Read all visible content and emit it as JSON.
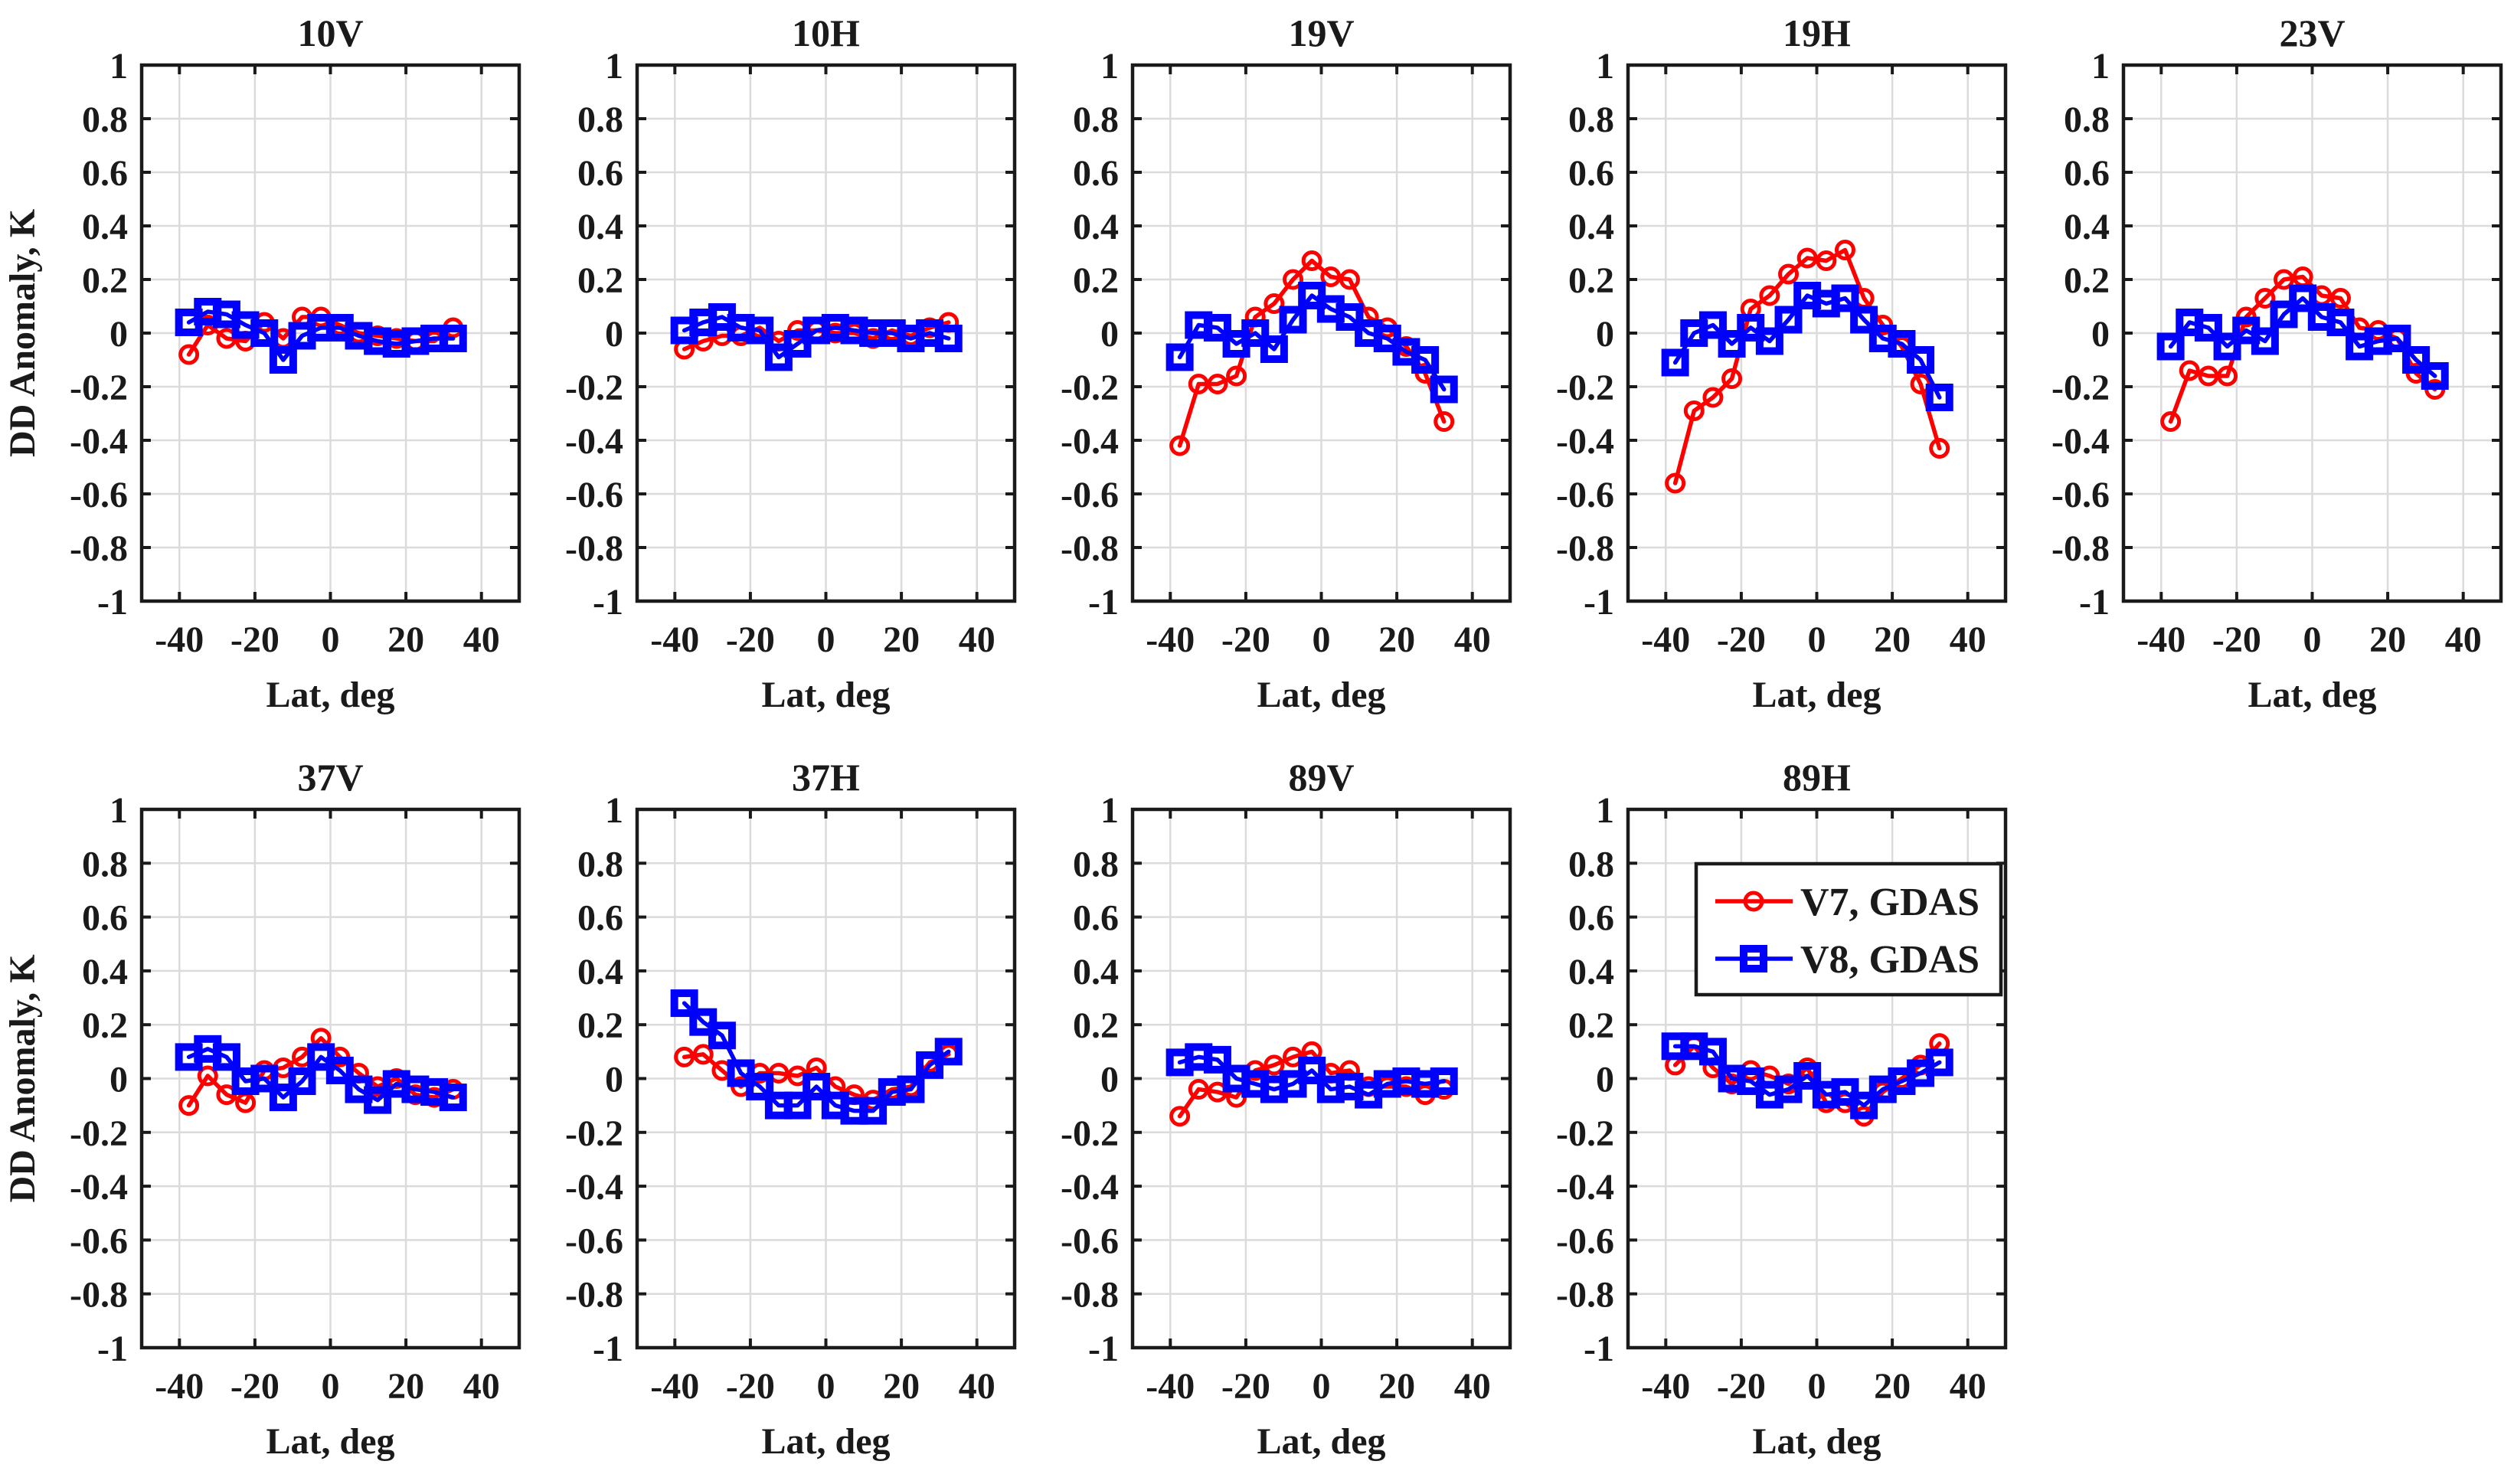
{
  "figure": {
    "background": "#FFFFFF",
    "xlabel": "Lat, deg",
    "ylabel": "DD Anomaly, K",
    "colors": {
      "v7": "#FF0000",
      "v8": "#0000FF",
      "grid": "#DBDBDB",
      "axis": "#1A1A1A"
    },
    "legend": {
      "host": "89H",
      "position": "northeast",
      "entries": [
        {
          "label": "V7, GDAS",
          "color": "#FF0000",
          "marker": "circle"
        },
        {
          "label": "V8, GDAS",
          "color": "#0000FF",
          "marker": "square"
        }
      ]
    }
  },
  "chart_data": [
    {
      "type": "line",
      "title": "10V",
      "row": 0,
      "col": 0,
      "xlabel": "Lat, deg",
      "ylabel": "DD Anomaly, K",
      "xlim": [
        -50,
        50
      ],
      "ylim": [
        -1,
        1
      ],
      "xticks": [
        -40,
        -20,
        0,
        20,
        40
      ],
      "yticks": [
        1,
        0.8,
        0.6,
        0.4,
        0.2,
        0,
        -0.2,
        -0.4,
        -0.6,
        -0.8,
        -1
      ],
      "grid": true,
      "x": [
        -37.5,
        -32.5,
        -27.5,
        -22.5,
        -17.5,
        -12.5,
        -7.5,
        -2.5,
        2.5,
        7.5,
        12.5,
        17.5,
        22.5,
        27.5,
        32.5
      ],
      "series": [
        {
          "name": "V7, GDAS",
          "color": "#FF0000",
          "marker": "circle",
          "values": [
            -0.08,
            0.03,
            -0.02,
            -0.03,
            0.04,
            -0.02,
            0.06,
            0.06,
            0.03,
            0.0,
            -0.01,
            -0.02,
            -0.03,
            -0.03,
            0.02
          ]
        },
        {
          "name": "V8, GDAS",
          "color": "#0000FF",
          "marker": "square",
          "values": [
            0.04,
            0.08,
            0.07,
            0.03,
            0.0,
            -0.1,
            -0.01,
            0.02,
            0.02,
            -0.01,
            -0.03,
            -0.04,
            -0.03,
            -0.02,
            -0.02
          ]
        }
      ]
    },
    {
      "type": "line",
      "title": "10H",
      "row": 0,
      "col": 1,
      "xlabel": "Lat, deg",
      "ylabel": "",
      "xlim": [
        -50,
        50
      ],
      "ylim": [
        -1,
        1
      ],
      "xticks": [
        -40,
        -20,
        0,
        20,
        40
      ],
      "yticks": [
        1,
        0.8,
        0.6,
        0.4,
        0.2,
        0,
        -0.2,
        -0.4,
        -0.6,
        -0.8,
        -1
      ],
      "grid": true,
      "x": [
        -37.5,
        -32.5,
        -27.5,
        -22.5,
        -17.5,
        -12.5,
        -7.5,
        -2.5,
        2.5,
        7.5,
        12.5,
        17.5,
        22.5,
        27.5,
        32.5
      ],
      "series": [
        {
          "name": "V7, GDAS",
          "color": "#FF0000",
          "marker": "circle",
          "values": [
            -0.06,
            -0.03,
            -0.01,
            -0.01,
            0.02,
            -0.03,
            0.01,
            0.01,
            0.0,
            0.0,
            -0.02,
            0.01,
            -0.01,
            0.02,
            0.04
          ]
        },
        {
          "name": "V8, GDAS",
          "color": "#0000FF",
          "marker": "square",
          "values": [
            0.01,
            0.04,
            0.06,
            0.02,
            0.01,
            -0.09,
            -0.04,
            0.01,
            0.02,
            0.01,
            0.0,
            0.0,
            -0.02,
            0.0,
            -0.02
          ]
        }
      ]
    },
    {
      "type": "line",
      "title": "19V",
      "row": 0,
      "col": 2,
      "xlabel": "Lat, deg",
      "ylabel": "",
      "xlim": [
        -50,
        50
      ],
      "ylim": [
        -1,
        1
      ],
      "xticks": [
        -40,
        -20,
        0,
        20,
        40
      ],
      "yticks": [
        1,
        0.8,
        0.6,
        0.4,
        0.2,
        0,
        -0.2,
        -0.4,
        -0.6,
        -0.8,
        -1
      ],
      "grid": true,
      "x": [
        -37.5,
        -32.5,
        -27.5,
        -22.5,
        -17.5,
        -12.5,
        -7.5,
        -2.5,
        2.5,
        7.5,
        12.5,
        17.5,
        22.5,
        27.5,
        32.5
      ],
      "series": [
        {
          "name": "V7, GDAS",
          "color": "#FF0000",
          "marker": "circle",
          "values": [
            -0.42,
            -0.19,
            -0.19,
            -0.16,
            0.06,
            0.11,
            0.2,
            0.27,
            0.21,
            0.2,
            0.06,
            0.02,
            -0.05,
            -0.15,
            -0.33
          ]
        },
        {
          "name": "V8, GDAS",
          "color": "#0000FF",
          "marker": "square",
          "values": [
            -0.09,
            0.03,
            0.02,
            -0.04,
            0.0,
            -0.06,
            0.05,
            0.14,
            0.09,
            0.06,
            0.0,
            -0.02,
            -0.07,
            -0.1,
            -0.21
          ]
        }
      ]
    },
    {
      "type": "line",
      "title": "19H",
      "row": 0,
      "col": 3,
      "xlabel": "Lat, deg",
      "ylabel": "",
      "xlim": [
        -50,
        50
      ],
      "ylim": [
        -1,
        1
      ],
      "xticks": [
        -40,
        -20,
        0,
        20,
        40
      ],
      "yticks": [
        1,
        0.8,
        0.6,
        0.4,
        0.2,
        0,
        -0.2,
        -0.4,
        -0.6,
        -0.8,
        -1
      ],
      "grid": true,
      "x": [
        -37.5,
        -32.5,
        -27.5,
        -22.5,
        -17.5,
        -12.5,
        -7.5,
        -2.5,
        2.5,
        7.5,
        12.5,
        17.5,
        22.5,
        27.5,
        32.5
      ],
      "series": [
        {
          "name": "V7, GDAS",
          "color": "#FF0000",
          "marker": "circle",
          "values": [
            -0.56,
            -0.29,
            -0.24,
            -0.17,
            0.09,
            0.14,
            0.22,
            0.28,
            0.27,
            0.31,
            0.13,
            0.03,
            -0.05,
            -0.19,
            -0.43
          ]
        },
        {
          "name": "V8, GDAS",
          "color": "#0000FF",
          "marker": "square",
          "values": [
            -0.11,
            0.0,
            0.03,
            -0.04,
            0.02,
            -0.03,
            0.05,
            0.14,
            0.11,
            0.13,
            0.05,
            -0.02,
            -0.04,
            -0.1,
            -0.24
          ]
        }
      ]
    },
    {
      "type": "line",
      "title": "23V",
      "row": 0,
      "col": 4,
      "xlabel": "Lat, deg",
      "ylabel": "",
      "xlim": [
        -50,
        50
      ],
      "ylim": [
        -1,
        1
      ],
      "xticks": [
        -40,
        -20,
        0,
        20,
        40
      ],
      "yticks": [
        1,
        0.8,
        0.6,
        0.4,
        0.2,
        0,
        -0.2,
        -0.4,
        -0.6,
        -0.8,
        -1
      ],
      "grid": true,
      "x": [
        -37.5,
        -32.5,
        -27.5,
        -22.5,
        -17.5,
        -12.5,
        -7.5,
        -2.5,
        2.5,
        7.5,
        12.5,
        17.5,
        22.5,
        27.5,
        32.5
      ],
      "series": [
        {
          "name": "V7, GDAS",
          "color": "#FF0000",
          "marker": "circle",
          "values": [
            -0.33,
            -0.14,
            -0.16,
            -0.16,
            0.06,
            0.13,
            0.2,
            0.21,
            0.14,
            0.13,
            0.02,
            0.01,
            -0.02,
            -0.15,
            -0.21
          ]
        },
        {
          "name": "V8, GDAS",
          "color": "#0000FF",
          "marker": "square",
          "values": [
            -0.05,
            0.04,
            0.02,
            -0.05,
            0.01,
            -0.03,
            0.07,
            0.13,
            0.06,
            0.04,
            -0.05,
            -0.03,
            -0.02,
            -0.1,
            -0.16
          ]
        }
      ]
    },
    {
      "type": "line",
      "title": "37V",
      "row": 1,
      "col": 0,
      "xlabel": "Lat, deg",
      "ylabel": "DD Anomaly, K",
      "xlim": [
        -50,
        50
      ],
      "ylim": [
        -1,
        1
      ],
      "xticks": [
        -40,
        -20,
        0,
        20,
        40
      ],
      "yticks": [
        1,
        0.8,
        0.6,
        0.4,
        0.2,
        0,
        -0.2,
        -0.4,
        -0.6,
        -0.8,
        -1
      ],
      "grid": true,
      "x": [
        -37.5,
        -32.5,
        -27.5,
        -22.5,
        -17.5,
        -12.5,
        -7.5,
        -2.5,
        2.5,
        7.5,
        12.5,
        17.5,
        22.5,
        27.5,
        32.5
      ],
      "series": [
        {
          "name": "V7, GDAS",
          "color": "#FF0000",
          "marker": "circle",
          "values": [
            -0.1,
            0.01,
            -0.06,
            -0.09,
            0.03,
            0.04,
            0.08,
            0.15,
            0.08,
            0.02,
            -0.03,
            0.0,
            -0.06,
            -0.07,
            -0.04
          ]
        },
        {
          "name": "V8, GDAS",
          "color": "#0000FF",
          "marker": "square",
          "values": [
            0.08,
            0.11,
            0.08,
            -0.01,
            0.0,
            -0.07,
            -0.01,
            0.08,
            0.03,
            -0.04,
            -0.08,
            -0.02,
            -0.04,
            -0.05,
            -0.07
          ]
        }
      ]
    },
    {
      "type": "line",
      "title": "37H",
      "row": 1,
      "col": 1,
      "xlabel": "Lat, deg",
      "ylabel": "",
      "xlim": [
        -50,
        50
      ],
      "ylim": [
        -1,
        1
      ],
      "xticks": [
        -40,
        -20,
        0,
        20,
        40
      ],
      "yticks": [
        1,
        0.8,
        0.6,
        0.4,
        0.2,
        0,
        -0.2,
        -0.4,
        -0.6,
        -0.8,
        -1
      ],
      "grid": true,
      "x": [
        -37.5,
        -32.5,
        -27.5,
        -22.5,
        -17.5,
        -12.5,
        -7.5,
        -2.5,
        2.5,
        7.5,
        12.5,
        17.5,
        22.5,
        27.5,
        32.5
      ],
      "series": [
        {
          "name": "V7, GDAS",
          "color": "#FF0000",
          "marker": "circle",
          "values": [
            0.08,
            0.09,
            0.03,
            -0.03,
            0.02,
            0.02,
            0.01,
            0.04,
            -0.03,
            -0.06,
            -0.08,
            -0.04,
            -0.03,
            0.06,
            0.09
          ]
        },
        {
          "name": "V8, GDAS",
          "color": "#0000FF",
          "marker": "square",
          "values": [
            0.28,
            0.21,
            0.16,
            0.02,
            -0.03,
            -0.1,
            -0.1,
            -0.03,
            -0.1,
            -0.12,
            -0.12,
            -0.05,
            -0.04,
            0.05,
            0.1
          ]
        }
      ]
    },
    {
      "type": "line",
      "title": "89V",
      "row": 1,
      "col": 2,
      "xlabel": "Lat, deg",
      "ylabel": "",
      "xlim": [
        -50,
        50
      ],
      "ylim": [
        -1,
        1
      ],
      "xticks": [
        -40,
        -20,
        0,
        20,
        40
      ],
      "yticks": [
        1,
        0.8,
        0.6,
        0.4,
        0.2,
        0,
        -0.2,
        -0.4,
        -0.6,
        -0.8,
        -1
      ],
      "grid": true,
      "x": [
        -37.5,
        -32.5,
        -27.5,
        -22.5,
        -17.5,
        -12.5,
        -7.5,
        -2.5,
        2.5,
        7.5,
        12.5,
        17.5,
        22.5,
        27.5,
        32.5
      ],
      "series": [
        {
          "name": "V7, GDAS",
          "color": "#FF0000",
          "marker": "circle",
          "values": [
            -0.14,
            -0.04,
            -0.05,
            -0.07,
            0.03,
            0.05,
            0.08,
            0.1,
            0.02,
            0.03,
            -0.03,
            -0.03,
            -0.03,
            -0.06,
            -0.04
          ]
        },
        {
          "name": "V8, GDAS",
          "color": "#0000FF",
          "marker": "square",
          "values": [
            0.06,
            0.08,
            0.07,
            0.0,
            -0.02,
            -0.04,
            -0.02,
            0.03,
            -0.04,
            -0.03,
            -0.06,
            -0.02,
            -0.01,
            -0.02,
            -0.01
          ]
        }
      ]
    },
    {
      "type": "line",
      "title": "89H",
      "row": 1,
      "col": 3,
      "xlabel": "Lat, deg",
      "ylabel": "",
      "xlim": [
        -50,
        50
      ],
      "ylim": [
        -1,
        1
      ],
      "xticks": [
        -40,
        -20,
        0,
        20,
        40
      ],
      "yticks": [
        1,
        0.8,
        0.6,
        0.4,
        0.2,
        0,
        -0.2,
        -0.4,
        -0.6,
        -0.8,
        -1
      ],
      "grid": true,
      "x": [
        -37.5,
        -32.5,
        -27.5,
        -22.5,
        -17.5,
        -12.5,
        -7.5,
        -2.5,
        2.5,
        7.5,
        12.5,
        17.5,
        22.5,
        27.5,
        32.5
      ],
      "series": [
        {
          "name": "V7, GDAS",
          "color": "#FF0000",
          "marker": "circle",
          "values": [
            0.05,
            0.12,
            0.04,
            -0.02,
            0.03,
            0.01,
            -0.02,
            0.04,
            -0.09,
            -0.09,
            -0.14,
            -0.05,
            0.0,
            0.05,
            0.13
          ]
        },
        {
          "name": "V8, GDAS",
          "color": "#0000FF",
          "marker": "square",
          "values": [
            0.12,
            0.12,
            0.1,
            0.0,
            -0.01,
            -0.06,
            -0.04,
            0.01,
            -0.06,
            -0.05,
            -0.1,
            -0.04,
            -0.01,
            0.02,
            0.06
          ]
        }
      ]
    }
  ]
}
